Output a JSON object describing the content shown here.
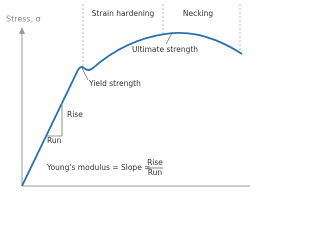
{
  "axis_label": "Stress, σ",
  "regions": [
    "Strain hardening",
    "Necking"
  ],
  "labels": {
    "ultimate": "Ultimate strength",
    "yield": "Yield strength",
    "rise": "Rise",
    "run": "Run"
  },
  "formula": {
    "text": "Young's modulus = Slope =",
    "numerator": "Rise",
    "denominator": "Run"
  }
}
